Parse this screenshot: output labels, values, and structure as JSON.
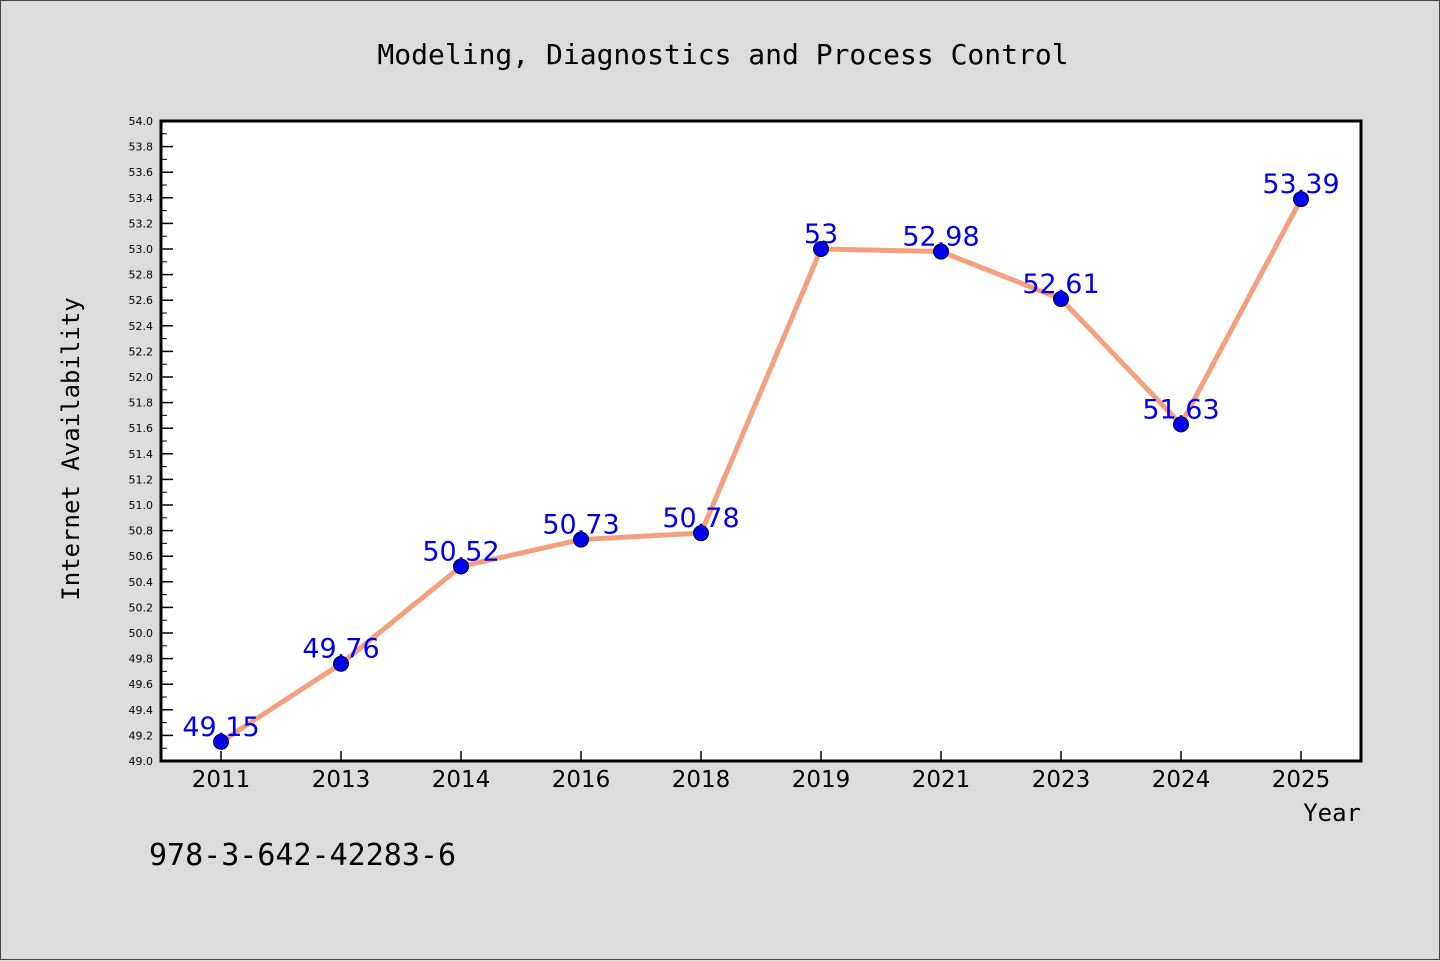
{
  "chart_data": {
    "type": "line",
    "title": "Modeling, Diagnostics and Process Control",
    "xlabel": "Year",
    "ylabel": "Internet Availability",
    "categories": [
      "2011",
      "2013",
      "2014",
      "2016",
      "2018",
      "2019",
      "2021",
      "2023",
      "2024",
      "2025"
    ],
    "values": [
      49.15,
      49.76,
      50.52,
      50.73,
      50.78,
      53,
      52.98,
      52.61,
      51.63,
      53.39
    ],
    "data_labels": [
      "49.15",
      "49.76",
      "50.52",
      "50.73",
      "50.78",
      "53",
      "52.98",
      "52.61",
      "51.63",
      "53.39"
    ],
    "ylim": [
      49.0,
      54.0
    ],
    "y_ticks": [
      "49.0",
      "49.2",
      "49.4",
      "49.6",
      "49.8",
      "50.0",
      "50.2",
      "50.4",
      "50.6",
      "50.8",
      "51.0",
      "51.2",
      "51.4",
      "51.6",
      "51.8",
      "52.0",
      "52.2",
      "52.4",
      "52.6",
      "52.8",
      "53.0",
      "53.2",
      "53.4",
      "53.6",
      "53.8",
      "54.0"
    ],
    "grid": false,
    "colors": {
      "line": "#f4a07f",
      "marker": "#0000ee",
      "label": "#0000ee",
      "plot_background": "#ffffff",
      "figure_background": "#dcdcdc"
    }
  },
  "footer_text": "978-3-642-42283-6"
}
